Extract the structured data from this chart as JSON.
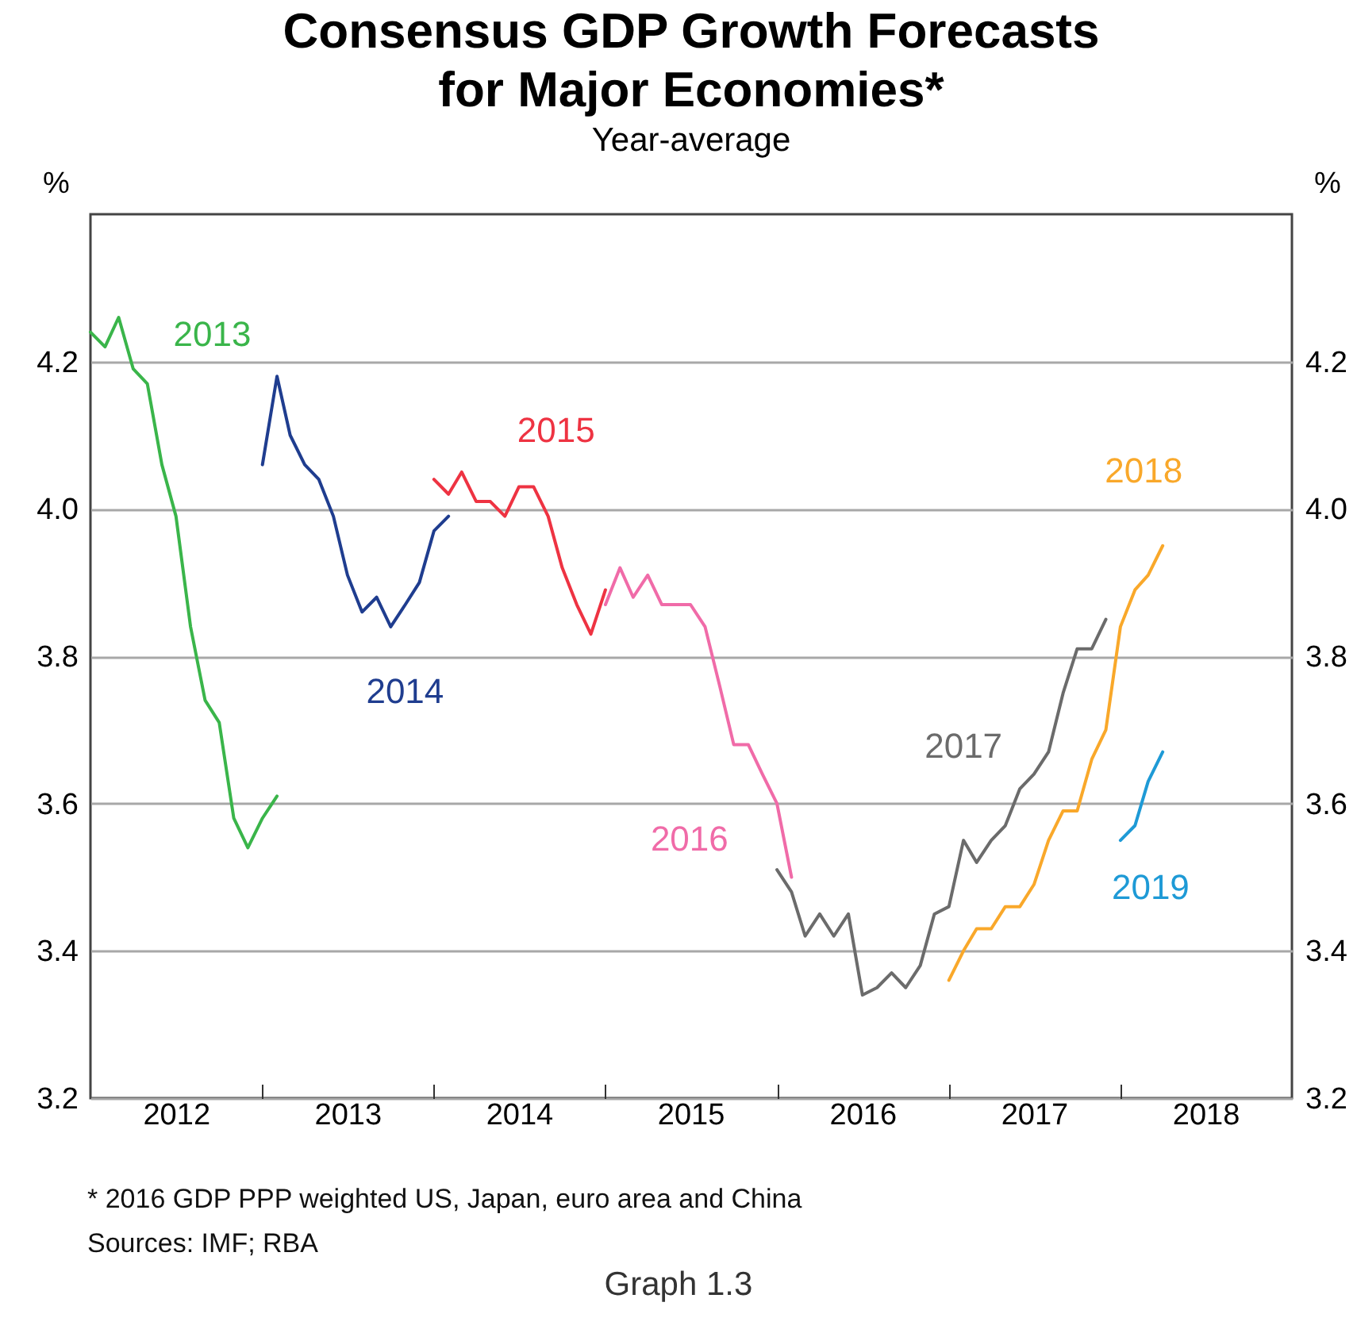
{
  "chart_data": {
    "type": "line",
    "title": "Consensus GDP Growth Forecasts for Major Economies*",
    "subtitle": "Year-average",
    "ylabel": "%",
    "y2label": "%",
    "xlim": [
      "2012-01",
      "2019-01"
    ],
    "xticks": [
      {
        "value": "2013-01",
        "label": null
      },
      {
        "value": "2014-01",
        "label": null
      },
      {
        "value": "2015-01",
        "label": null
      },
      {
        "value": "2016-01",
        "label": null
      },
      {
        "value": "2017-01",
        "label": null
      },
      {
        "value": "2018-01",
        "label": null
      },
      {
        "value": "2012-07",
        "label": "2012"
      },
      {
        "value": "2013-07",
        "label": "2013"
      },
      {
        "value": "2014-07",
        "label": "2014"
      },
      {
        "value": "2015-07",
        "label": "2015"
      },
      {
        "value": "2016-07",
        "label": "2016"
      },
      {
        "value": "2017-07",
        "label": "2017"
      },
      {
        "value": "2018-07",
        "label": "2018"
      }
    ],
    "ylim": [
      3.2,
      4.4
    ],
    "yticks": [
      3.2,
      3.4,
      3.6,
      3.8,
      {
        "value": 4.0,
        "label": "4.0"
      },
      4.2
    ],
    "y2lim": [
      3.2,
      4.4
    ],
    "y2ticks": [
      3.2,
      3.4,
      3.6,
      3.8,
      {
        "value": 4.0,
        "label": "4.0"
      },
      4.2
    ],
    "grid": "y",
    "series": [
      {
        "name": "2013",
        "color": "#3ab54a",
        "x": [
          "2012-01",
          "2012-02",
          "2012-03",
          "2012-04",
          "2012-05",
          "2012-06",
          "2012-07",
          "2012-08",
          "2012-09",
          "2012-10",
          "2012-11",
          "2012-12",
          "2013-01",
          "2013-02"
        ],
        "values": [
          4.24,
          4.22,
          4.26,
          4.19,
          4.17,
          4.06,
          3.99,
          3.84,
          3.74,
          3.71,
          3.58,
          3.54,
          3.58,
          3.61
        ]
      },
      {
        "name": "2014",
        "color": "#1f3d8f",
        "x": [
          "2013-01",
          "2013-02",
          "2013-03",
          "2013-04",
          "2013-05",
          "2013-06",
          "2013-07",
          "2013-08",
          "2013-09",
          "2013-10",
          "2013-11",
          "2013-12",
          "2014-01",
          "2014-02"
        ],
        "values": [
          4.06,
          4.18,
          4.1,
          4.06,
          4.04,
          3.99,
          3.91,
          3.86,
          3.88,
          3.84,
          3.87,
          3.9,
          3.97,
          3.99
        ]
      },
      {
        "name": "2015",
        "color": "#ee3342",
        "x": [
          "2014-01",
          "2014-02",
          "2014-03",
          "2014-04",
          "2014-05",
          "2014-06",
          "2014-07",
          "2014-08",
          "2014-09",
          "2014-10",
          "2014-11",
          "2014-12",
          "2015-01"
        ],
        "values": [
          4.04,
          4.02,
          4.05,
          4.01,
          4.01,
          3.99,
          4.03,
          4.03,
          3.99,
          3.92,
          3.87,
          3.83,
          3.89
        ]
      },
      {
        "name": "2016",
        "color": "#f06ba8",
        "x": [
          "2015-01",
          "2015-02",
          "2015-03",
          "2015-04",
          "2015-05",
          "2015-06",
          "2015-07",
          "2015-08",
          "2015-09",
          "2015-10",
          "2015-11",
          "2015-12",
          "2016-01",
          "2016-02"
        ],
        "values": [
          3.87,
          3.92,
          3.88,
          3.91,
          3.87,
          3.87,
          3.87,
          3.84,
          3.76,
          3.68,
          3.68,
          3.64,
          3.6,
          3.5
        ]
      },
      {
        "name": "2017",
        "color": "#6b6b6b",
        "x": [
          "2016-01",
          "2016-02",
          "2016-03",
          "2016-04",
          "2016-05",
          "2016-06",
          "2016-07",
          "2016-08",
          "2016-09",
          "2016-10",
          "2016-11",
          "2016-12",
          "2017-01",
          "2017-02",
          "2017-03",
          "2017-04",
          "2017-05",
          "2017-06",
          "2017-07",
          "2017-08",
          "2017-09",
          "2017-10",
          "2017-11",
          "2017-12"
        ],
        "values": [
          3.51,
          3.48,
          3.42,
          3.45,
          3.42,
          3.45,
          3.34,
          3.35,
          3.37,
          3.35,
          3.38,
          3.45,
          3.46,
          3.55,
          3.52,
          3.55,
          3.57,
          3.62,
          3.64,
          3.67,
          3.75,
          3.81,
          3.81,
          3.85
        ]
      },
      {
        "name": "2018",
        "color": "#f9a82a",
        "x": [
          "2017-01",
          "2017-02",
          "2017-03",
          "2017-04",
          "2017-05",
          "2017-06",
          "2017-07",
          "2017-08",
          "2017-09",
          "2017-10",
          "2017-11",
          "2017-12",
          "2018-01",
          "2018-02",
          "2018-03",
          "2018-04"
        ],
        "values": [
          3.36,
          3.4,
          3.43,
          3.43,
          3.46,
          3.46,
          3.49,
          3.55,
          3.59,
          3.59,
          3.66,
          3.7,
          3.84,
          3.89,
          3.91,
          3.95
        ]
      },
      {
        "name": "2019",
        "color": "#1e9ad6",
        "x": [
          "2018-01",
          "2018-02",
          "2018-03",
          "2018-04"
        ],
        "values": [
          3.55,
          3.57,
          3.63,
          3.67
        ]
      }
    ],
    "annotations": [
      "* 2016 GDP PPP weighted US, Japan, euro area and China",
      "Sources: IMF; RBA",
      "Graph 1.3"
    ]
  }
}
